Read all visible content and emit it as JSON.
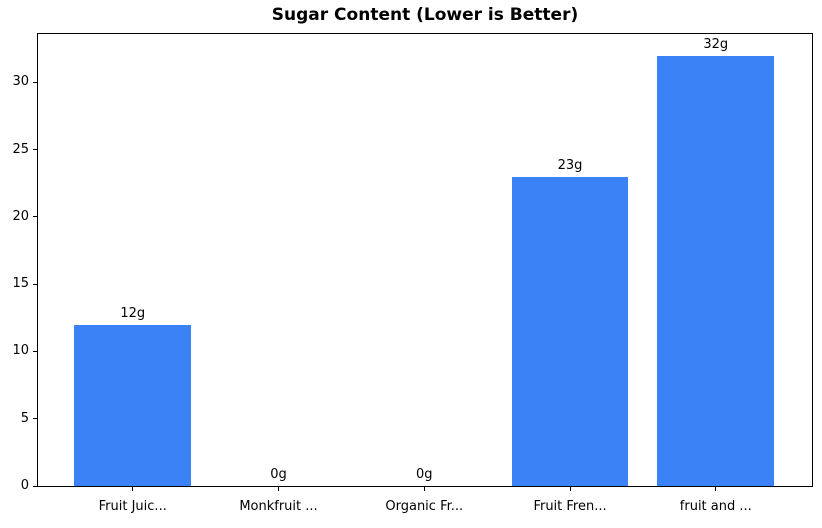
{
  "chart_data": {
    "type": "bar",
    "title": "Sugar Content (Lower is Better)",
    "categories": [
      "Fruit Juic...",
      "Monkfruit ...",
      "Organic Fr...",
      "Fruit Fren...",
      "fruit and ..."
    ],
    "values": [
      12,
      0,
      0,
      23,
      32
    ],
    "bar_labels": [
      "12g",
      "0g",
      "0g",
      "23g",
      "32g"
    ],
    "xlabel": "",
    "ylabel": "",
    "yticks": [
      0,
      5,
      10,
      15,
      20,
      25,
      30
    ],
    "ylim": [
      0,
      33.6
    ],
    "xlim": [
      -0.65,
      4.66
    ],
    "bar_width_fraction": 0.8,
    "grid": false,
    "legend": null,
    "bar_color": "#3b82f6",
    "spine_color": "#000000",
    "text_color": "#000000",
    "background_color": "#ffffff"
  }
}
